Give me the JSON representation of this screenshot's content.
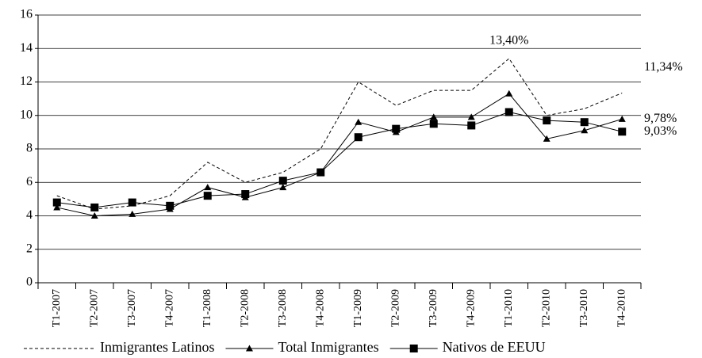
{
  "chart_data": {
    "type": "line",
    "categories": [
      "T1-2007",
      "T2-2007",
      "T3-2007",
      "T4-2007",
      "T1-2008",
      "T2-2008",
      "T3-2008",
      "T4-2008",
      "T1-2009",
      "T2-2009",
      "T3-2009",
      "T4-2009",
      "T1-2010",
      "T2-2010",
      "T3-2010",
      "T4-2010"
    ],
    "series": [
      {
        "name": "Inmigrantes Latinos",
        "color": "#000000",
        "dash": true,
        "marker": "none",
        "values": [
          5.2,
          4.4,
          4.6,
          5.2,
          7.2,
          6.0,
          6.6,
          8.0,
          12.0,
          10.6,
          11.5,
          11.5,
          13.4,
          10.0,
          10.4,
          11.34
        ],
        "value_labels": [
          null,
          null,
          null,
          null,
          null,
          null,
          null,
          null,
          null,
          null,
          null,
          null,
          "13,40%",
          null,
          null,
          "11,34%"
        ]
      },
      {
        "name": "Total Inmigrantes",
        "color": "#000000",
        "dash": false,
        "marker": "triangle",
        "values": [
          4.5,
          4.0,
          4.1,
          4.4,
          5.7,
          5.1,
          5.7,
          6.6,
          9.6,
          9.0,
          9.9,
          9.9,
          11.3,
          8.6,
          9.1,
          9.78
        ],
        "value_labels": [
          null,
          null,
          null,
          null,
          null,
          null,
          null,
          null,
          null,
          null,
          null,
          null,
          null,
          null,
          null,
          "9,78%"
        ]
      },
      {
        "name": "Nativos de EEUU",
        "color": "#000000",
        "dash": false,
        "marker": "square",
        "values": [
          4.8,
          4.5,
          4.8,
          4.6,
          5.2,
          5.3,
          6.1,
          6.6,
          8.7,
          9.2,
          9.5,
          9.4,
          10.2,
          9.7,
          9.6,
          9.03
        ],
        "value_labels": [
          null,
          null,
          null,
          null,
          null,
          null,
          null,
          null,
          null,
          null,
          null,
          null,
          null,
          null,
          null,
          "9,03%"
        ]
      }
    ],
    "ylim": [
      0,
      16
    ],
    "yticks": [
      0,
      2,
      4,
      6,
      8,
      10,
      12,
      14,
      16
    ],
    "grid": true,
    "legend": "bottom"
  }
}
